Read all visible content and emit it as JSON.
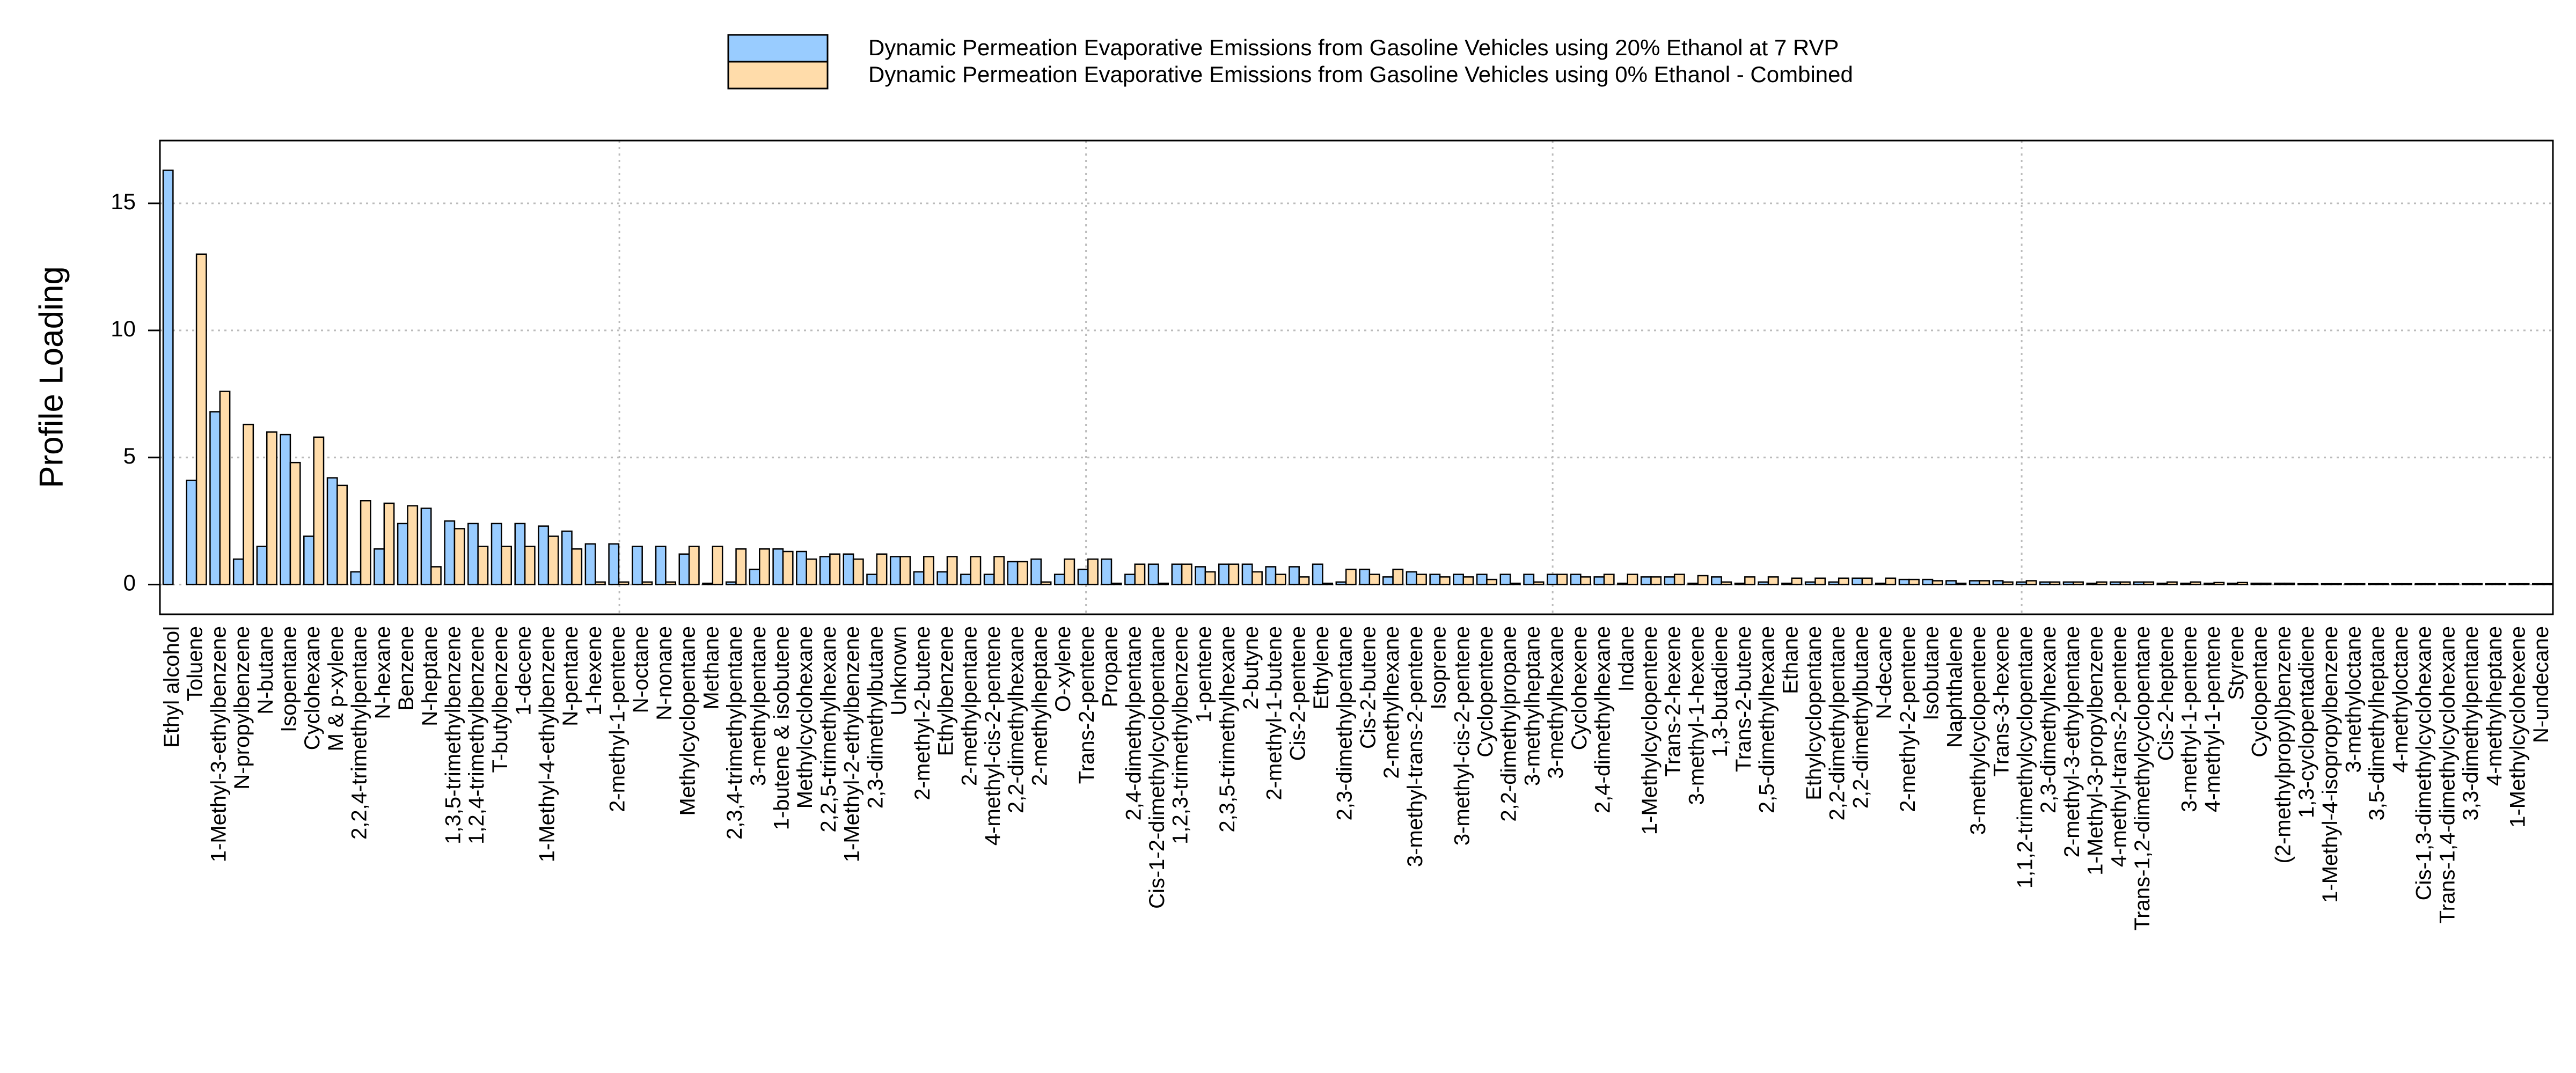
{
  "chart_data": {
    "type": "bar",
    "ylabel": "Profile Loading",
    "ylim": [
      -1.17,
      17.47
    ],
    "yticks": [
      0,
      5,
      10,
      15
    ],
    "grid": true,
    "legend": "top",
    "categories": [
      "Ethyl alcohol",
      "Toluene",
      "1-Methyl-3-ethylbenzene",
      "N-propylbenzene",
      "N-butane",
      "Isopentane",
      "Cyclohexane",
      "M & p-xylene",
      "2,2,4-trimethylpentane",
      "N-hexane",
      "Benzene",
      "N-heptane",
      "1,3,5-trimethylbenzene",
      "1,2,4-trimethylbenzene",
      "T-butylbenzene",
      "1-decene",
      "1-Methyl-4-ethylbenzene",
      "N-pentane",
      "1-hexene",
      "2-methyl-1-pentene",
      "N-octane",
      "N-nonane",
      "Methylcyclopentane",
      "Methane",
      "2,3,4-trimethylpentane",
      "3-methylpentane",
      "1-butene & isobutene",
      "Methylcyclohexane",
      "2,2,5-trimethylhexane",
      "1-Methyl-2-ethylbenzene",
      "2,3-dimethylbutane",
      "Unknown",
      "2-methyl-2-butene",
      "Ethylbenzene",
      "2-methylpentane",
      "4-methyl-cis-2-pentene",
      "2,2-dimethylhexane",
      "2-methylheptane",
      "O-xylene",
      "Trans-2-pentene",
      "Propane",
      "2,4-dimethylpentane",
      "Cis-1-2-dimethylcyclopentane",
      "1,2,3-trimethylbenzene",
      "1-pentene",
      "2,3,5-trimethylhexane",
      "2-butyne",
      "2-methyl-1-butene",
      "Cis-2-pentene",
      "Ethylene",
      "2,3-dimethylpentane",
      "Cis-2-butene",
      "2-methylhexane",
      "3-methyl-trans-2-pentene",
      "Isoprene",
      "3-methyl-cis-2-pentene",
      "Cyclopentene",
      "2,2-dimethylpropane",
      "3-methylheptane",
      "3-methylhexane",
      "Cyclohexene",
      "2,4-dimethylhexane",
      "Indane",
      "1-Methylcyclopentene",
      "Trans-2-hexene",
      "3-methyl-1-hexene",
      "1,3-butadiene",
      "Trans-2-butene",
      "2,5-dimethylhexane",
      "Ethane",
      "Ethylcyclopentane",
      "2,2-dimethylpentane",
      "2,2-dimethylbutane",
      "N-decane",
      "2-methyl-2-pentene",
      "Isobutane",
      "Naphthalene",
      "3-methylcyclopentene",
      "Trans-3-hexene",
      "1,1,2-trimethylcyclopentane",
      "2,3-dimethylhexane",
      "2-methyl-3-ethylpentane",
      "1-Methyl-3-propylbenzene",
      "4-methyl-trans-2-pentene",
      "Trans-1,2-dimethylcyclopentane",
      "Cis-2-heptene",
      "3-methyl-1-pentene",
      "4-methyl-1-pentene",
      "Styrene",
      "Cyclopentane",
      "(2-methylpropyl)benzene",
      "1,3-cyclopentadiene",
      "1-Methyl-4-isopropylbenzene",
      "3-methyloctane",
      "3,5-dimethylheptane",
      "4-methyloctane",
      "Cis-1,3-dimethylcyclohexane",
      "Trans-1,4-dimethylcyclohexane",
      "3,3-dimethylpentane",
      "4-methylheptane",
      "1-Methylcyclohexene",
      "N-undecane"
    ],
    "series": [
      {
        "name": "Dynamic Permeation Evaporative Emissions from Gasoline Vehicles using 20% Ethanol at 7 RVP",
        "color": "#99ccff",
        "values": [
          16.3,
          4.1,
          6.8,
          1.0,
          1.5,
          5.9,
          1.9,
          4.2,
          0.5,
          1.4,
          2.4,
          3.0,
          2.5,
          2.4,
          2.4,
          2.4,
          2.3,
          2.1,
          1.6,
          1.6,
          1.5,
          1.5,
          1.2,
          0.05,
          0.1,
          0.6,
          1.4,
          1.3,
          1.1,
          1.2,
          0.4,
          1.1,
          0.5,
          0.5,
          0.4,
          0.4,
          0.9,
          1.0,
          0.4,
          0.6,
          1.0,
          0.4,
          0.8,
          0.8,
          0.7,
          0.8,
          0.8,
          0.7,
          0.7,
          0.8,
          0.1,
          0.6,
          0.3,
          0.5,
          0.4,
          0.4,
          0.4,
          0.4,
          0.4,
          0.4,
          0.4,
          0.3,
          0.05,
          0.3,
          0.3,
          0.05,
          0.3,
          0.05,
          0.1,
          0.05,
          0.1,
          0.1,
          0.25,
          0.05,
          0.2,
          0.2,
          0.15,
          0.15,
          0.15,
          0.1,
          0.1,
          0.1,
          0.05,
          0.1,
          0.1,
          0.05,
          0.05,
          0.05,
          0.05,
          0.05,
          0.05,
          0.03,
          0.03,
          0.03,
          0.03,
          0.03,
          0.03,
          0.03,
          0.03,
          0.03,
          0.03,
          0.03
        ]
      },
      {
        "name": "Dynamic Permeation Evaporative Emissions from Gasoline Vehicles using 0% Ethanol - Combined",
        "color": "#ffdcaa",
        "values": [
          0,
          13.0,
          7.6,
          6.3,
          6.0,
          4.8,
          5.8,
          3.9,
          3.3,
          3.2,
          3.1,
          0.7,
          2.2,
          1.5,
          1.5,
          1.5,
          1.9,
          1.4,
          0.1,
          0.1,
          0.1,
          0.1,
          1.5,
          1.5,
          1.4,
          1.4,
          1.3,
          1.0,
          1.2,
          1.0,
          1.2,
          1.1,
          1.1,
          1.1,
          1.1,
          1.1,
          0.9,
          0.1,
          1.0,
          1.0,
          0.05,
          0.8,
          0.05,
          0.8,
          0.5,
          0.8,
          0.5,
          0.4,
          0.3,
          0.05,
          0.6,
          0.4,
          0.6,
          0.4,
          0.3,
          0.3,
          0.2,
          0.05,
          0.1,
          0.4,
          0.3,
          0.4,
          0.4,
          0.3,
          0.4,
          0.35,
          0.1,
          0.3,
          0.3,
          0.25,
          0.25,
          0.25,
          0.25,
          0.25,
          0.2,
          0.15,
          0.05,
          0.15,
          0.1,
          0.15,
          0.1,
          0.1,
          0.1,
          0.1,
          0.1,
          0.1,
          0.1,
          0.08,
          0.08,
          0.05,
          0.05,
          0.03,
          0.03,
          0.03,
          0.03,
          0.03,
          0.03,
          0.03,
          0.03,
          0.03,
          0.03,
          0.03
        ]
      }
    ]
  }
}
